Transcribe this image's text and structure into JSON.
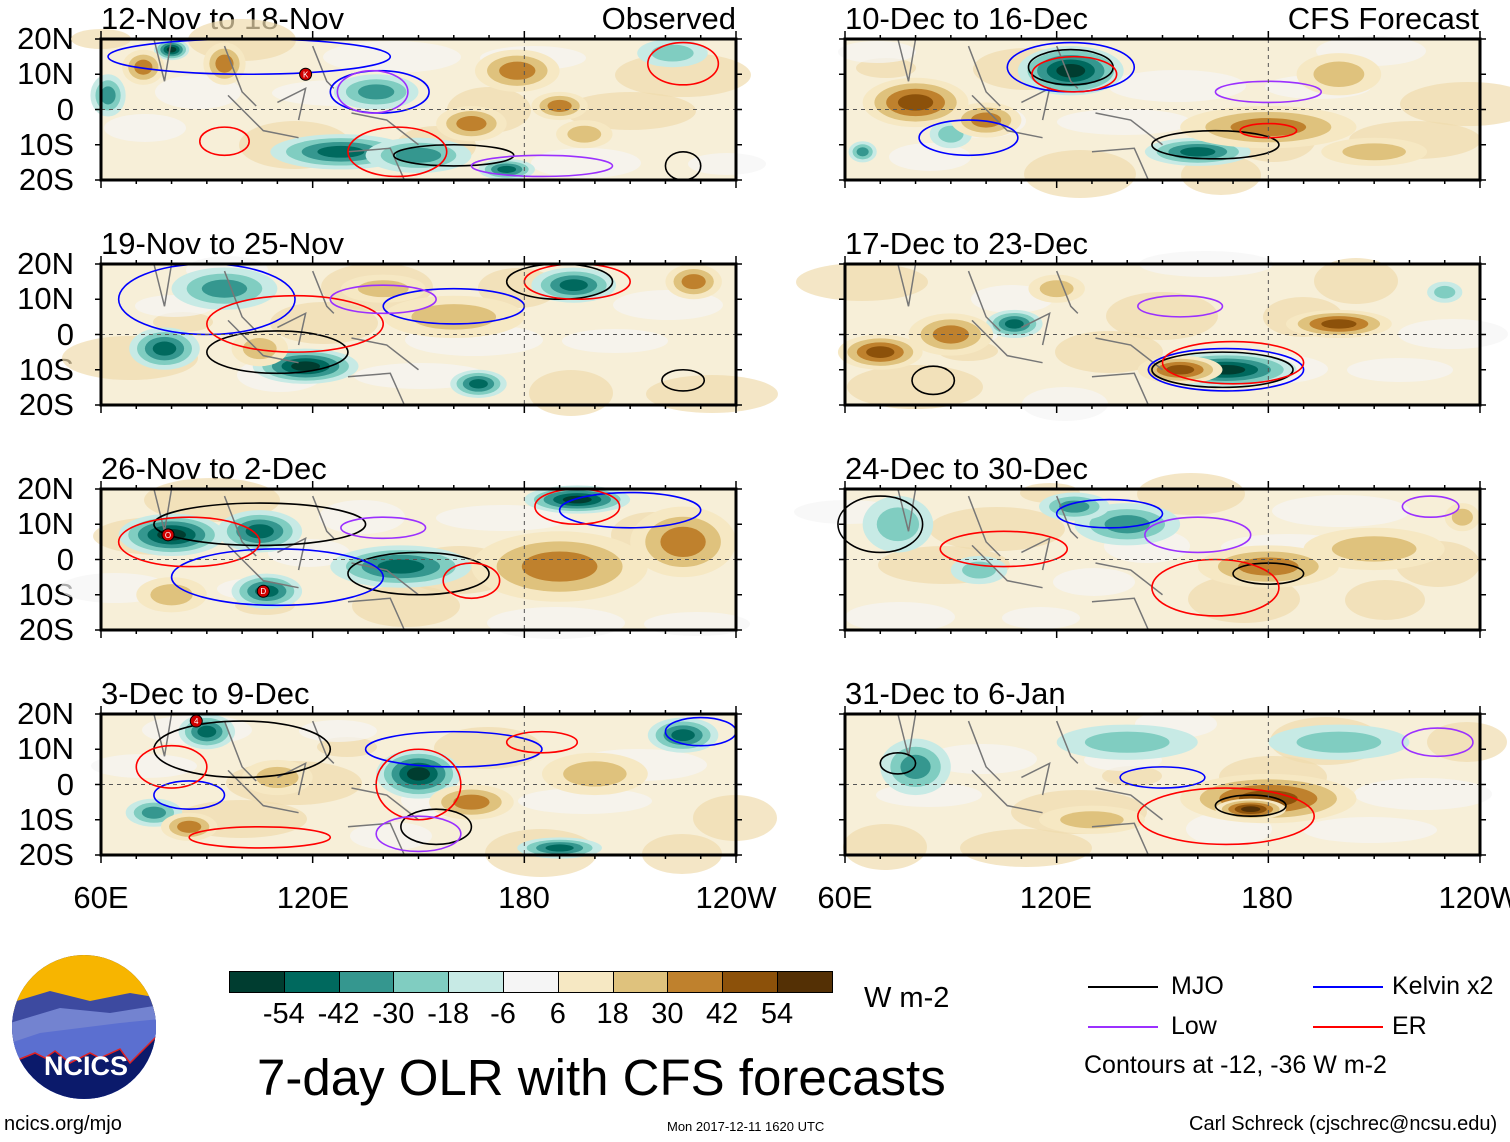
{
  "header": {
    "left_tag": "Observed",
    "right_tag": "CFS Forecast"
  },
  "lat_labels": [
    "20N",
    "10N",
    "0",
    "10S",
    "20S"
  ],
  "lon_labels": [
    "60E",
    "120E",
    "180",
    "120W"
  ],
  "colorbar": {
    "levels": [
      "-54",
      "-42",
      "-30",
      "-18",
      "-6",
      "6",
      "18",
      "30",
      "42",
      "54"
    ],
    "colors": [
      "#003d30",
      "#00695e",
      "#35978f",
      "#80cdc1",
      "#c7eae5",
      "#f5f5f5",
      "#f6e8c3",
      "#dfc27d",
      "#bf812d",
      "#8c510a",
      "#543005"
    ],
    "units": "W m-2"
  },
  "title": "7-day OLR with CFS forecasts",
  "timestamp": "Mon 2017-12-11 1620 UTC",
  "url": "ncics.org/mjo",
  "logo_text": "NCICS",
  "credit": "Carl Schreck (cjschrec@ncsu.edu)",
  "legend": {
    "items": [
      {
        "label": "MJO",
        "color": "#000000"
      },
      {
        "label": "Kelvin x2",
        "color": "#0000ff"
      },
      {
        "label": "Low",
        "color": "#9b30ff"
      },
      {
        "label": "ER",
        "color": "#ff0000"
      }
    ],
    "note": "Contours at -12, -36 W m-2"
  },
  "panels": [
    {
      "title": "12-Nov to 18-Nov",
      "source": "Observed",
      "anomalies": [
        [
          128,
          -12,
          20,
          5,
          -42
        ],
        [
          150,
          -13,
          15,
          5,
          -30
        ],
        [
          175,
          -17,
          8,
          3,
          -42
        ],
        [
          62,
          4,
          5,
          6,
          -30
        ],
        [
          80,
          17,
          5,
          3,
          -54
        ],
        [
          138,
          5,
          12,
          5,
          -30
        ],
        [
          222,
          16,
          10,
          4,
          -18
        ],
        [
          72,
          12,
          6,
          5,
          30
        ],
        [
          95,
          13,
          6,
          6,
          30
        ],
        [
          178,
          11,
          12,
          6,
          30
        ],
        [
          165,
          -4,
          10,
          5,
          30
        ],
        [
          190,
          1,
          8,
          4,
          30
        ],
        [
          197,
          -7,
          8,
          4,
          18
        ]
      ],
      "contours": [
        [
          "MJO",
          160,
          -13,
          17,
          3
        ],
        [
          "MJO",
          225,
          -16,
          5,
          4
        ],
        [
          "Kelvin",
          139,
          5,
          14,
          6
        ],
        [
          "Kelvin",
          102,
          15,
          40,
          5
        ],
        [
          "Low",
          137,
          5,
          10,
          6
        ],
        [
          "Low",
          185,
          -16,
          20,
          3
        ],
        [
          "ER",
          95,
          -9,
          7,
          4
        ],
        [
          "ER",
          144,
          -12,
          14,
          7
        ],
        [
          "ER",
          225,
          13,
          10,
          6
        ]
      ],
      "storms": [
        {
          "label": "K",
          "lon": 118,
          "lat": 10
        }
      ]
    },
    {
      "title": "10-Dec to 16-Dec",
      "source": "CFS Forecast",
      "anomalies": [
        [
          124,
          11,
          15,
          7,
          -54
        ],
        [
          90,
          -7,
          6,
          4,
          -18
        ],
        [
          160,
          -12,
          15,
          4,
          -42
        ],
        [
          65,
          -12,
          4,
          3,
          -30
        ],
        [
          80,
          2,
          15,
          7,
          42
        ],
        [
          100,
          -3,
          10,
          5,
          30
        ],
        [
          180,
          -5,
          25,
          6,
          30
        ],
        [
          210,
          -12,
          15,
          4,
          18
        ],
        [
          200,
          10,
          12,
          6,
          18
        ]
      ],
      "contours": [
        [
          "MJO",
          124,
          12,
          12,
          5
        ],
        [
          "MJO",
          165,
          -10,
          18,
          4
        ],
        [
          "Kelvin",
          124,
          12,
          18,
          7
        ],
        [
          "Kelvin",
          95,
          -8,
          14,
          5
        ],
        [
          "ER",
          125,
          10,
          12,
          5
        ],
        [
          "ER",
          180,
          -6,
          8,
          2
        ],
        [
          "Low",
          180,
          5,
          15,
          3
        ]
      ],
      "storms": []
    },
    {
      "title": "19-Nov to 25-Nov",
      "source": "Observed",
      "anomalies": [
        [
          95,
          13,
          15,
          6,
          -30
        ],
        [
          78,
          -4,
          10,
          6,
          -42
        ],
        [
          118,
          -9,
          15,
          5,
          -54
        ],
        [
          194,
          14,
          12,
          5,
          -42
        ],
        [
          167,
          -14,
          8,
          4,
          -42
        ],
        [
          105,
          -4,
          8,
          5,
          18
        ],
        [
          160,
          5,
          20,
          6,
          18
        ],
        [
          140,
          13,
          12,
          4,
          18
        ],
        [
          228,
          15,
          8,
          5,
          30
        ]
      ],
      "contours": [
        [
          "MJO",
          110,
          -5,
          20,
          6
        ],
        [
          "MJO",
          190,
          15,
          15,
          5
        ],
        [
          "MJO",
          225,
          -13,
          6,
          3
        ],
        [
          "Kelvin",
          90,
          10,
          25,
          10
        ],
        [
          "Kelvin",
          160,
          8,
          20,
          5
        ],
        [
          "ER",
          115,
          3,
          25,
          8
        ],
        [
          "ER",
          195,
          15,
          15,
          5
        ],
        [
          "Low",
          140,
          10,
          15,
          4
        ]
      ],
      "storms": []
    },
    {
      "title": "17-Dec to 23-Dec",
      "source": "CFS Forecast",
      "anomalies": [
        [
          108,
          3,
          8,
          4,
          -42
        ],
        [
          168,
          -10,
          20,
          5,
          -54
        ],
        [
          230,
          12,
          5,
          3,
          -18
        ],
        [
          70,
          -5,
          12,
          5,
          42
        ],
        [
          90,
          0,
          12,
          6,
          30
        ],
        [
          155,
          -10,
          12,
          4,
          42
        ],
        [
          200,
          3,
          15,
          4,
          42
        ],
        [
          120,
          13,
          8,
          4,
          18
        ]
      ],
      "contours": [
        [
          "MJO",
          167,
          -10,
          20,
          5
        ],
        [
          "MJO",
          85,
          -13,
          6,
          4
        ],
        [
          "Kelvin",
          168,
          -10,
          22,
          6
        ],
        [
          "ER",
          170,
          -8,
          20,
          6
        ],
        [
          "Low",
          155,
          8,
          12,
          3
        ]
      ],
      "storms": []
    },
    {
      "title": "26-Nov to 2-Dec",
      "source": "Observed",
      "anomalies": [
        [
          80,
          7,
          15,
          6,
          -54
        ],
        [
          105,
          8,
          12,
          6,
          -42
        ],
        [
          145,
          -2,
          20,
          6,
          -42
        ],
        [
          107,
          -9,
          10,
          5,
          -42
        ],
        [
          195,
          17,
          15,
          4,
          -54
        ],
        [
          190,
          -2,
          25,
          10,
          30
        ],
        [
          225,
          5,
          15,
          10,
          30
        ],
        [
          80,
          -10,
          10,
          5,
          18
        ]
      ],
      "contours": [
        [
          "MJO",
          105,
          10,
          30,
          6
        ],
        [
          "MJO",
          150,
          -4,
          20,
          6
        ],
        [
          "Kelvin",
          110,
          -5,
          30,
          8
        ],
        [
          "Kelvin",
          210,
          14,
          20,
          5
        ],
        [
          "ER",
          85,
          5,
          20,
          7
        ],
        [
          "ER",
          195,
          15,
          12,
          5
        ],
        [
          "ER",
          165,
          -6,
          8,
          5
        ],
        [
          "Low",
          140,
          9,
          12,
          3
        ]
      ],
      "storms": [
        {
          "label": "O",
          "lon": 79,
          "lat": 7
        },
        {
          "label": "D",
          "lon": 106,
          "lat": -9
        }
      ]
    },
    {
      "title": "24-Dec to 30-Dec",
      "source": "CFS Forecast",
      "anomalies": [
        [
          75,
          10,
          10,
          8,
          -18
        ],
        [
          140,
          10,
          15,
          6,
          -30
        ],
        [
          125,
          15,
          10,
          4,
          -30
        ],
        [
          98,
          -3,
          8,
          4,
          -18
        ],
        [
          180,
          -2,
          20,
          6,
          30
        ],
        [
          210,
          3,
          20,
          6,
          18
        ],
        [
          235,
          12,
          5,
          4,
          18
        ]
      ],
      "contours": [
        [
          "MJO",
          180,
          -4,
          10,
          3
        ],
        [
          "MJO",
          70,
          10,
          12,
          8
        ],
        [
          "Kelvin",
          135,
          13,
          15,
          4
        ],
        [
          "Low",
          160,
          7,
          15,
          5
        ],
        [
          "Low",
          226,
          15,
          8,
          3
        ],
        [
          "ER",
          105,
          3,
          18,
          5
        ],
        [
          "ER",
          165,
          -8,
          18,
          8
        ]
      ],
      "storms": []
    },
    {
      "title": "3-Dec to 9-Dec",
      "source": "Observed",
      "anomalies": [
        [
          90,
          15,
          8,
          5,
          -42
        ],
        [
          150,
          3,
          12,
          7,
          -54
        ],
        [
          225,
          14,
          10,
          5,
          -42
        ],
        [
          75,
          -8,
          8,
          4,
          -30
        ],
        [
          190,
          -18,
          12,
          3,
          -42
        ],
        [
          165,
          -5,
          12,
          5,
          30
        ],
        [
          85,
          -12,
          8,
          4,
          30
        ],
        [
          110,
          2,
          10,
          5,
          18
        ],
        [
          200,
          3,
          15,
          6,
          18
        ]
      ],
      "contours": [
        [
          "MJO",
          100,
          10,
          25,
          8
        ],
        [
          "MJO",
          155,
          -12,
          10,
          5
        ],
        [
          "Kelvin",
          160,
          10,
          25,
          5
        ],
        [
          "Kelvin",
          85,
          -3,
          10,
          4
        ],
        [
          "Kelvin",
          230,
          15,
          10,
          4
        ],
        [
          "ER",
          150,
          0,
          12,
          10
        ],
        [
          "ER",
          105,
          -15,
          20,
          3
        ],
        [
          "ER",
          185,
          12,
          10,
          3
        ],
        [
          "ER",
          80,
          5,
          10,
          6
        ],
        [
          "Low",
          150,
          -14,
          12,
          5
        ]
      ],
      "storms": [
        {
          "label": "4",
          "lon": 87,
          "lat": 18
        }
      ]
    },
    {
      "title": "31-Dec to 6-Jan",
      "source": "CFS Forecast",
      "anomalies": [
        [
          80,
          5,
          10,
          8,
          -30
        ],
        [
          140,
          12,
          20,
          5,
          -18
        ],
        [
          200,
          12,
          20,
          5,
          -18
        ],
        [
          180,
          -4,
          25,
          7,
          42
        ],
        [
          175,
          -7,
          10,
          3,
          54
        ],
        [
          130,
          -10,
          15,
          4,
          18
        ]
      ],
      "contours": [
        [
          "MJO",
          75,
          6,
          5,
          3
        ],
        [
          "MJO",
          175,
          -6,
          10,
          3
        ],
        [
          "Kelvin",
          150,
          2,
          12,
          3
        ],
        [
          "Low",
          228,
          12,
          10,
          4
        ],
        [
          "ER",
          168,
          -9,
          25,
          8
        ]
      ],
      "storms": []
    }
  ]
}
